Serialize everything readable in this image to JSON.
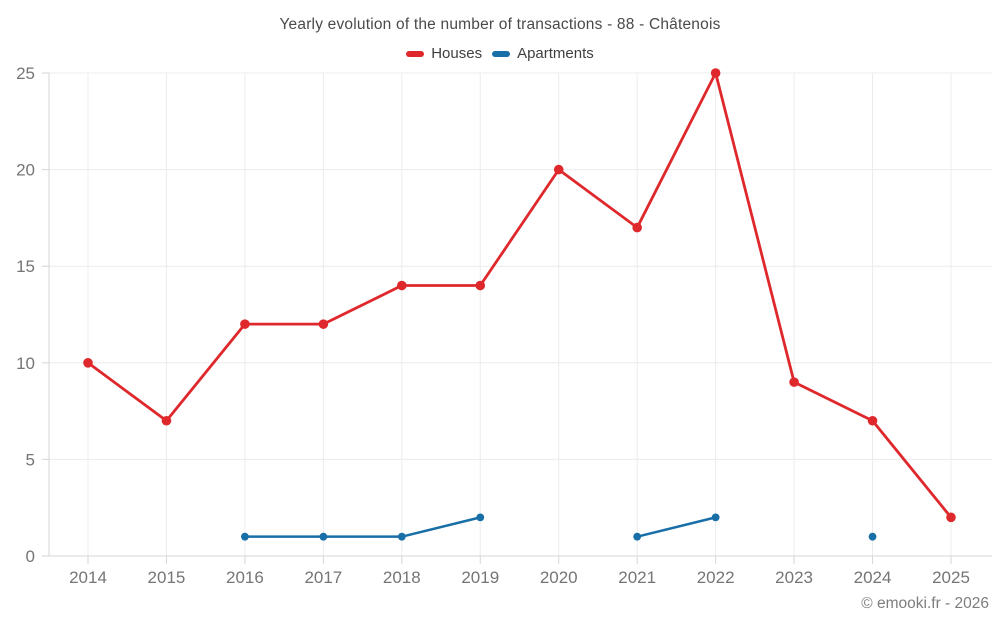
{
  "header": {
    "title": "Yearly evolution of the number of transactions - 88 - Châtenois"
  },
  "chart_data": {
    "type": "line",
    "title": "Yearly evolution of the number of transactions - 88 - Châtenois",
    "categories": [
      "2014",
      "2015",
      "2016",
      "2017",
      "2018",
      "2019",
      "2020",
      "2021",
      "2022",
      "2023",
      "2024",
      "2025"
    ],
    "xlabel": "",
    "ylabel": "",
    "ylim": [
      0,
      25
    ],
    "yticks": [
      0,
      5,
      10,
      15,
      20,
      25
    ],
    "grid": true,
    "legend_position": "top",
    "series": [
      {
        "name": "Houses",
        "color": "#df282c",
        "values": [
          10,
          7,
          12,
          12,
          14,
          14,
          20,
          17,
          25,
          9,
          7,
          2
        ]
      },
      {
        "name": "Apartments",
        "color": "#186ea7",
        "values": [
          null,
          null,
          1,
          1,
          1,
          2,
          null,
          1,
          2,
          null,
          1,
          null
        ]
      }
    ]
  },
  "footer": {
    "copyright": "© emooki.fr - 2026"
  }
}
